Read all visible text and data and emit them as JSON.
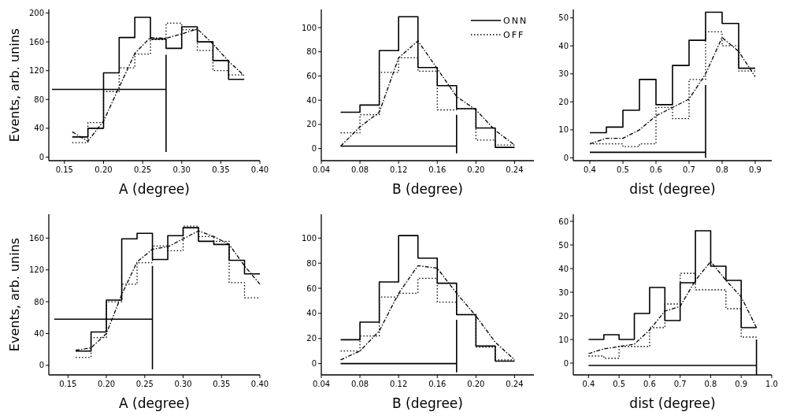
{
  "chart_data": [
    {
      "type": "step",
      "xlabel": "A (degree)",
      "ylabel": "Events, arb. unins",
      "xlim": [
        0.13,
        0.4
      ],
      "ylim": [
        -5,
        205
      ],
      "xticks": [
        {
          "value": 0.15,
          "label": "0.15"
        },
        {
          "value": 0.2,
          "label": "0.20"
        },
        {
          "value": 0.25,
          "label": "0.25"
        },
        {
          "value": 0.3,
          "label": "0.30"
        },
        {
          "value": 0.35,
          "label": "0.35"
        },
        {
          "value": 0.4,
          "label": "0.40"
        }
      ],
      "yticks": [
        0,
        40,
        80,
        120,
        160,
        200
      ],
      "series": [
        {
          "type": "step",
          "color": "#000000",
          "x": [
            0.16,
            0.18,
            0.2,
            0.22,
            0.24,
            0.26,
            0.28,
            0.3,
            0.32,
            0.34,
            0.36,
            0.38
          ],
          "values": [
            28,
            40,
            117,
            166,
            194,
            164,
            151,
            181,
            160,
            134,
            108,
            108
          ]
        },
        {
          "type": "step",
          "color": "#000000",
          "line_style": "dotted",
          "x": [
            0.16,
            0.18,
            0.2,
            0.22,
            0.24,
            0.26,
            0.28,
            0.3,
            0.32,
            0.34,
            0.36,
            0.38
          ],
          "values": [
            20,
            48,
            91,
            124,
            143,
            163,
            186,
            177,
            148,
            120,
            114,
            114
          ]
        },
        {
          "type": "line",
          "color": "#000000",
          "line_style": "dashed",
          "x": [
            0.16,
            0.18,
            0.2,
            0.22,
            0.24,
            0.26,
            0.28,
            0.3,
            0.32,
            0.34,
            0.36,
            0.38
          ],
          "values": [
            35,
            22,
            50,
            97,
            144,
            166,
            165,
            171,
            178,
            157,
            133,
            113
          ]
        },
        {
          "type": "line",
          "color": "#000000",
          "x": [
            0.134,
            0.28
          ],
          "values": [
            94,
            94
          ]
        },
        {
          "type": "line",
          "color": "#000000",
          "x": [
            0.28,
            0.28
          ],
          "values": [
            7,
            142
          ]
        }
      ]
    },
    {
      "type": "step",
      "xlabel": "B (degree)",
      "xlim": [
        0.04,
        0.26
      ],
      "ylim": [
        -10,
        115
      ],
      "legend": "top right",
      "xticks": [
        {
          "value": 0.04,
          "label": "0.04"
        },
        {
          "value": 0.08,
          "label": "0.08"
        },
        {
          "value": 0.12,
          "label": "0.12"
        },
        {
          "value": 0.16,
          "label": "0.16"
        },
        {
          "value": 0.2,
          "label": "0.20"
        },
        {
          "value": 0.24,
          "label": "0.24"
        }
      ],
      "yticks": [
        0,
        20,
        40,
        60,
        80,
        100
      ],
      "series": [
        {
          "type": "step",
          "name": "ONN",
          "color": "#000000",
          "x": [
            0.06,
            0.08,
            0.1,
            0.12,
            0.14,
            0.16,
            0.18,
            0.2,
            0.22,
            0.24
          ],
          "values": [
            30,
            36,
            81,
            109,
            67,
            52,
            33,
            17,
            1,
            1
          ]
        },
        {
          "type": "step",
          "name": "OFF",
          "color": "#000000",
          "line_style": "dotted",
          "x": [
            0.06,
            0.08,
            0.1,
            0.12,
            0.14,
            0.16,
            0.18,
            0.2,
            0.22,
            0.24
          ],
          "values": [
            13,
            28,
            63,
            75,
            64,
            32,
            33,
            7,
            3,
            3
          ]
        },
        {
          "type": "line",
          "color": "#000000",
          "line_style": "dashed",
          "x": [
            0.06,
            0.08,
            0.1,
            0.12,
            0.14,
            0.16,
            0.18,
            0.2,
            0.22,
            0.24
          ],
          "values": [
            2,
            18,
            30,
            75,
            89,
            66,
            43,
            32,
            15,
            3
          ]
        },
        {
          "type": "line",
          "color": "#000000",
          "x": [
            0.06,
            0.18
          ],
          "values": [
            2,
            2
          ]
        },
        {
          "type": "line",
          "color": "#000000",
          "x": [
            0.18,
            0.18
          ],
          "values": [
            -4,
            28
          ]
        }
      ]
    },
    {
      "type": "step",
      "xlabel": "dist (degree)",
      "xlim": [
        0.35,
        0.95
      ],
      "ylim": [
        -1,
        53
      ],
      "xticks": [
        0.4,
        0.5,
        0.6,
        0.7,
        0.8,
        0.9
      ],
      "yticks": [
        0,
        10,
        20,
        30,
        40,
        50
      ],
      "series": [
        {
          "type": "step",
          "color": "#000000",
          "x": [
            0.4,
            0.45,
            0.5,
            0.55,
            0.6,
            0.65,
            0.7,
            0.75,
            0.8,
            0.85,
            0.9
          ],
          "values": [
            9,
            11,
            17,
            28,
            19,
            33,
            42,
            52,
            48,
            32,
            32
          ]
        },
        {
          "type": "step",
          "color": "#000000",
          "line_style": "dotted",
          "x": [
            0.4,
            0.45,
            0.5,
            0.55,
            0.6,
            0.65,
            0.7,
            0.75,
            0.8,
            0.85,
            0.9
          ],
          "values": [
            5,
            5,
            4,
            5,
            18,
            14,
            28,
            45,
            40,
            31,
            31
          ]
        },
        {
          "type": "line",
          "color": "#000000",
          "line_style": "dashed",
          "x": [
            0.4,
            0.45,
            0.5,
            0.55,
            0.6,
            0.65,
            0.7,
            0.75,
            0.8,
            0.85,
            0.9
          ],
          "values": [
            5,
            7,
            7,
            10,
            15,
            18,
            21,
            30,
            43,
            38,
            29
          ]
        },
        {
          "type": "line",
          "color": "#000000",
          "x": [
            0.4,
            0.75
          ],
          "values": [
            2,
            2
          ]
        },
        {
          "type": "line",
          "color": "#000000",
          "x": [
            0.75,
            0.75
          ],
          "values": [
            0,
            26
          ]
        }
      ]
    },
    {
      "type": "step",
      "xlabel": "A (degree)",
      "ylabel": "Events, arb. unins",
      "xlim": [
        0.125,
        0.4
      ],
      "ylim": [
        -12,
        190
      ],
      "xticks": [
        {
          "value": 0.15,
          "label": "0.15"
        },
        {
          "value": 0.2,
          "label": "0.20"
        },
        {
          "value": 0.25,
          "label": "0.25"
        },
        {
          "value": 0.3,
          "label": "0.30"
        },
        {
          "value": 0.35,
          "label": "0.35"
        },
        {
          "value": 0.4,
          "label": "0.40"
        }
      ],
      "yticks": [
        0,
        40,
        80,
        120,
        160
      ],
      "series": [
        {
          "type": "step",
          "color": "#000000",
          "x": [
            0.16,
            0.18,
            0.2,
            0.22,
            0.24,
            0.26,
            0.28,
            0.3,
            0.32,
            0.34,
            0.36,
            0.38,
            0.4
          ],
          "values": [
            18,
            42,
            82,
            159,
            166,
            133,
            163,
            173,
            156,
            152,
            132,
            115,
            115
          ]
        },
        {
          "type": "step",
          "color": "#000000",
          "line_style": "dotted",
          "x": [
            0.16,
            0.18,
            0.2,
            0.22,
            0.24,
            0.26,
            0.28,
            0.3,
            0.32,
            0.34,
            0.36,
            0.38,
            0.4
          ],
          "values": [
            10,
            35,
            80,
            102,
            129,
            150,
            144,
            175,
            162,
            156,
            104,
            85,
            85
          ]
        },
        {
          "type": "line",
          "color": "#000000",
          "line_style": "dashed",
          "x": [
            0.16,
            0.18,
            0.2,
            0.22,
            0.24,
            0.26,
            0.28,
            0.3,
            0.32,
            0.34,
            0.36,
            0.38,
            0.4
          ],
          "values": [
            19,
            22,
            40,
            89,
            130,
            146,
            149,
            159,
            169,
            162,
            152,
            125,
            102
          ]
        },
        {
          "type": "line",
          "color": "#000000",
          "x": [
            0.132,
            0.26
          ],
          "values": [
            58,
            58
          ]
        },
        {
          "type": "line",
          "color": "#000000",
          "x": [
            0.26,
            0.26
          ],
          "values": [
            -5,
            125
          ]
        }
      ]
    },
    {
      "type": "step",
      "xlabel": "B (degree)",
      "xlim": [
        0.04,
        0.26
      ],
      "ylim": [
        -9,
        119
      ],
      "xticks": [
        {
          "value": 0.04,
          "label": "0.04"
        },
        {
          "value": 0.08,
          "label": "0.08"
        },
        {
          "value": 0.12,
          "label": "0.12"
        },
        {
          "value": 0.16,
          "label": "0.16"
        },
        {
          "value": 0.2,
          "label": "0.20"
        },
        {
          "value": 0.24,
          "label": "0.24"
        }
      ],
      "yticks": [
        0,
        20,
        40,
        60,
        80,
        100
      ],
      "series": [
        {
          "type": "step",
          "color": "#000000",
          "x": [
            0.06,
            0.08,
            0.1,
            0.12,
            0.14,
            0.16,
            0.18,
            0.2,
            0.22,
            0.24
          ],
          "values": [
            19,
            33,
            65,
            102,
            84,
            64,
            39,
            14,
            2,
            2
          ]
        },
        {
          "type": "step",
          "color": "#000000",
          "line_style": "dotted",
          "x": [
            0.06,
            0.08,
            0.1,
            0.12,
            0.14,
            0.16,
            0.18,
            0.2,
            0.22,
            0.24
          ],
          "values": [
            10,
            22,
            53,
            56,
            68,
            49,
            39,
            13,
            3,
            3
          ]
        },
        {
          "type": "line",
          "color": "#000000",
          "line_style": "dashed",
          "x": [
            0.06,
            0.08,
            0.1,
            0.12,
            0.14,
            0.16,
            0.18,
            0.2,
            0.22,
            0.24
          ],
          "values": [
            3,
            10,
            26,
            56,
            78,
            76,
            56,
            38,
            17,
            3
          ]
        },
        {
          "type": "line",
          "color": "#000000",
          "x": [
            0.06,
            0.18
          ],
          "values": [
            0,
            0
          ]
        },
        {
          "type": "line",
          "color": "#000000",
          "x": [
            0.18,
            0.18
          ],
          "values": [
            -7,
            35
          ]
        }
      ]
    },
    {
      "type": "step",
      "xlabel": "dist (degree)",
      "xlim": [
        0.35,
        1.0
      ],
      "ylim": [
        -5,
        63
      ],
      "xticks": [
        0.4,
        0.5,
        0.6,
        0.7,
        0.8,
        0.9,
        {
          "value": 1.0,
          "label": "1.0"
        }
      ],
      "yticks": [
        0,
        10,
        20,
        30,
        40,
        50,
        60
      ],
      "series": [
        {
          "type": "step",
          "color": "#000000",
          "x": [
            0.4,
            0.45,
            0.5,
            0.55,
            0.6,
            0.65,
            0.7,
            0.75,
            0.8,
            0.85,
            0.9,
            0.95
          ],
          "values": [
            10,
            12,
            10,
            21,
            32,
            18,
            34,
            56,
            41,
            35,
            15,
            15
          ]
        },
        {
          "type": "step",
          "color": "#000000",
          "line_style": "dotted",
          "x": [
            0.4,
            0.45,
            0.5,
            0.55,
            0.6,
            0.65,
            0.7,
            0.75,
            0.8,
            0.85,
            0.9,
            0.95
          ],
          "values": [
            3,
            2,
            7,
            7,
            15,
            25,
            38,
            31,
            31,
            23,
            11,
            11
          ]
        },
        {
          "type": "line",
          "color": "#000000",
          "line_style": "dashed",
          "x": [
            0.4,
            0.45,
            0.5,
            0.55,
            0.6,
            0.65,
            0.7,
            0.75,
            0.8,
            0.85,
            0.9,
            0.95
          ],
          "values": [
            4,
            6,
            7,
            8,
            14,
            22,
            24,
            35,
            43,
            35,
            28,
            15
          ]
        },
        {
          "type": "line",
          "color": "#000000",
          "x": [
            0.4,
            0.95
          ],
          "values": [
            -1,
            -1
          ]
        },
        {
          "type": "line",
          "color": "#000000",
          "x": [
            0.95,
            0.95
          ],
          "values": [
            -5,
            10
          ]
        }
      ]
    }
  ]
}
